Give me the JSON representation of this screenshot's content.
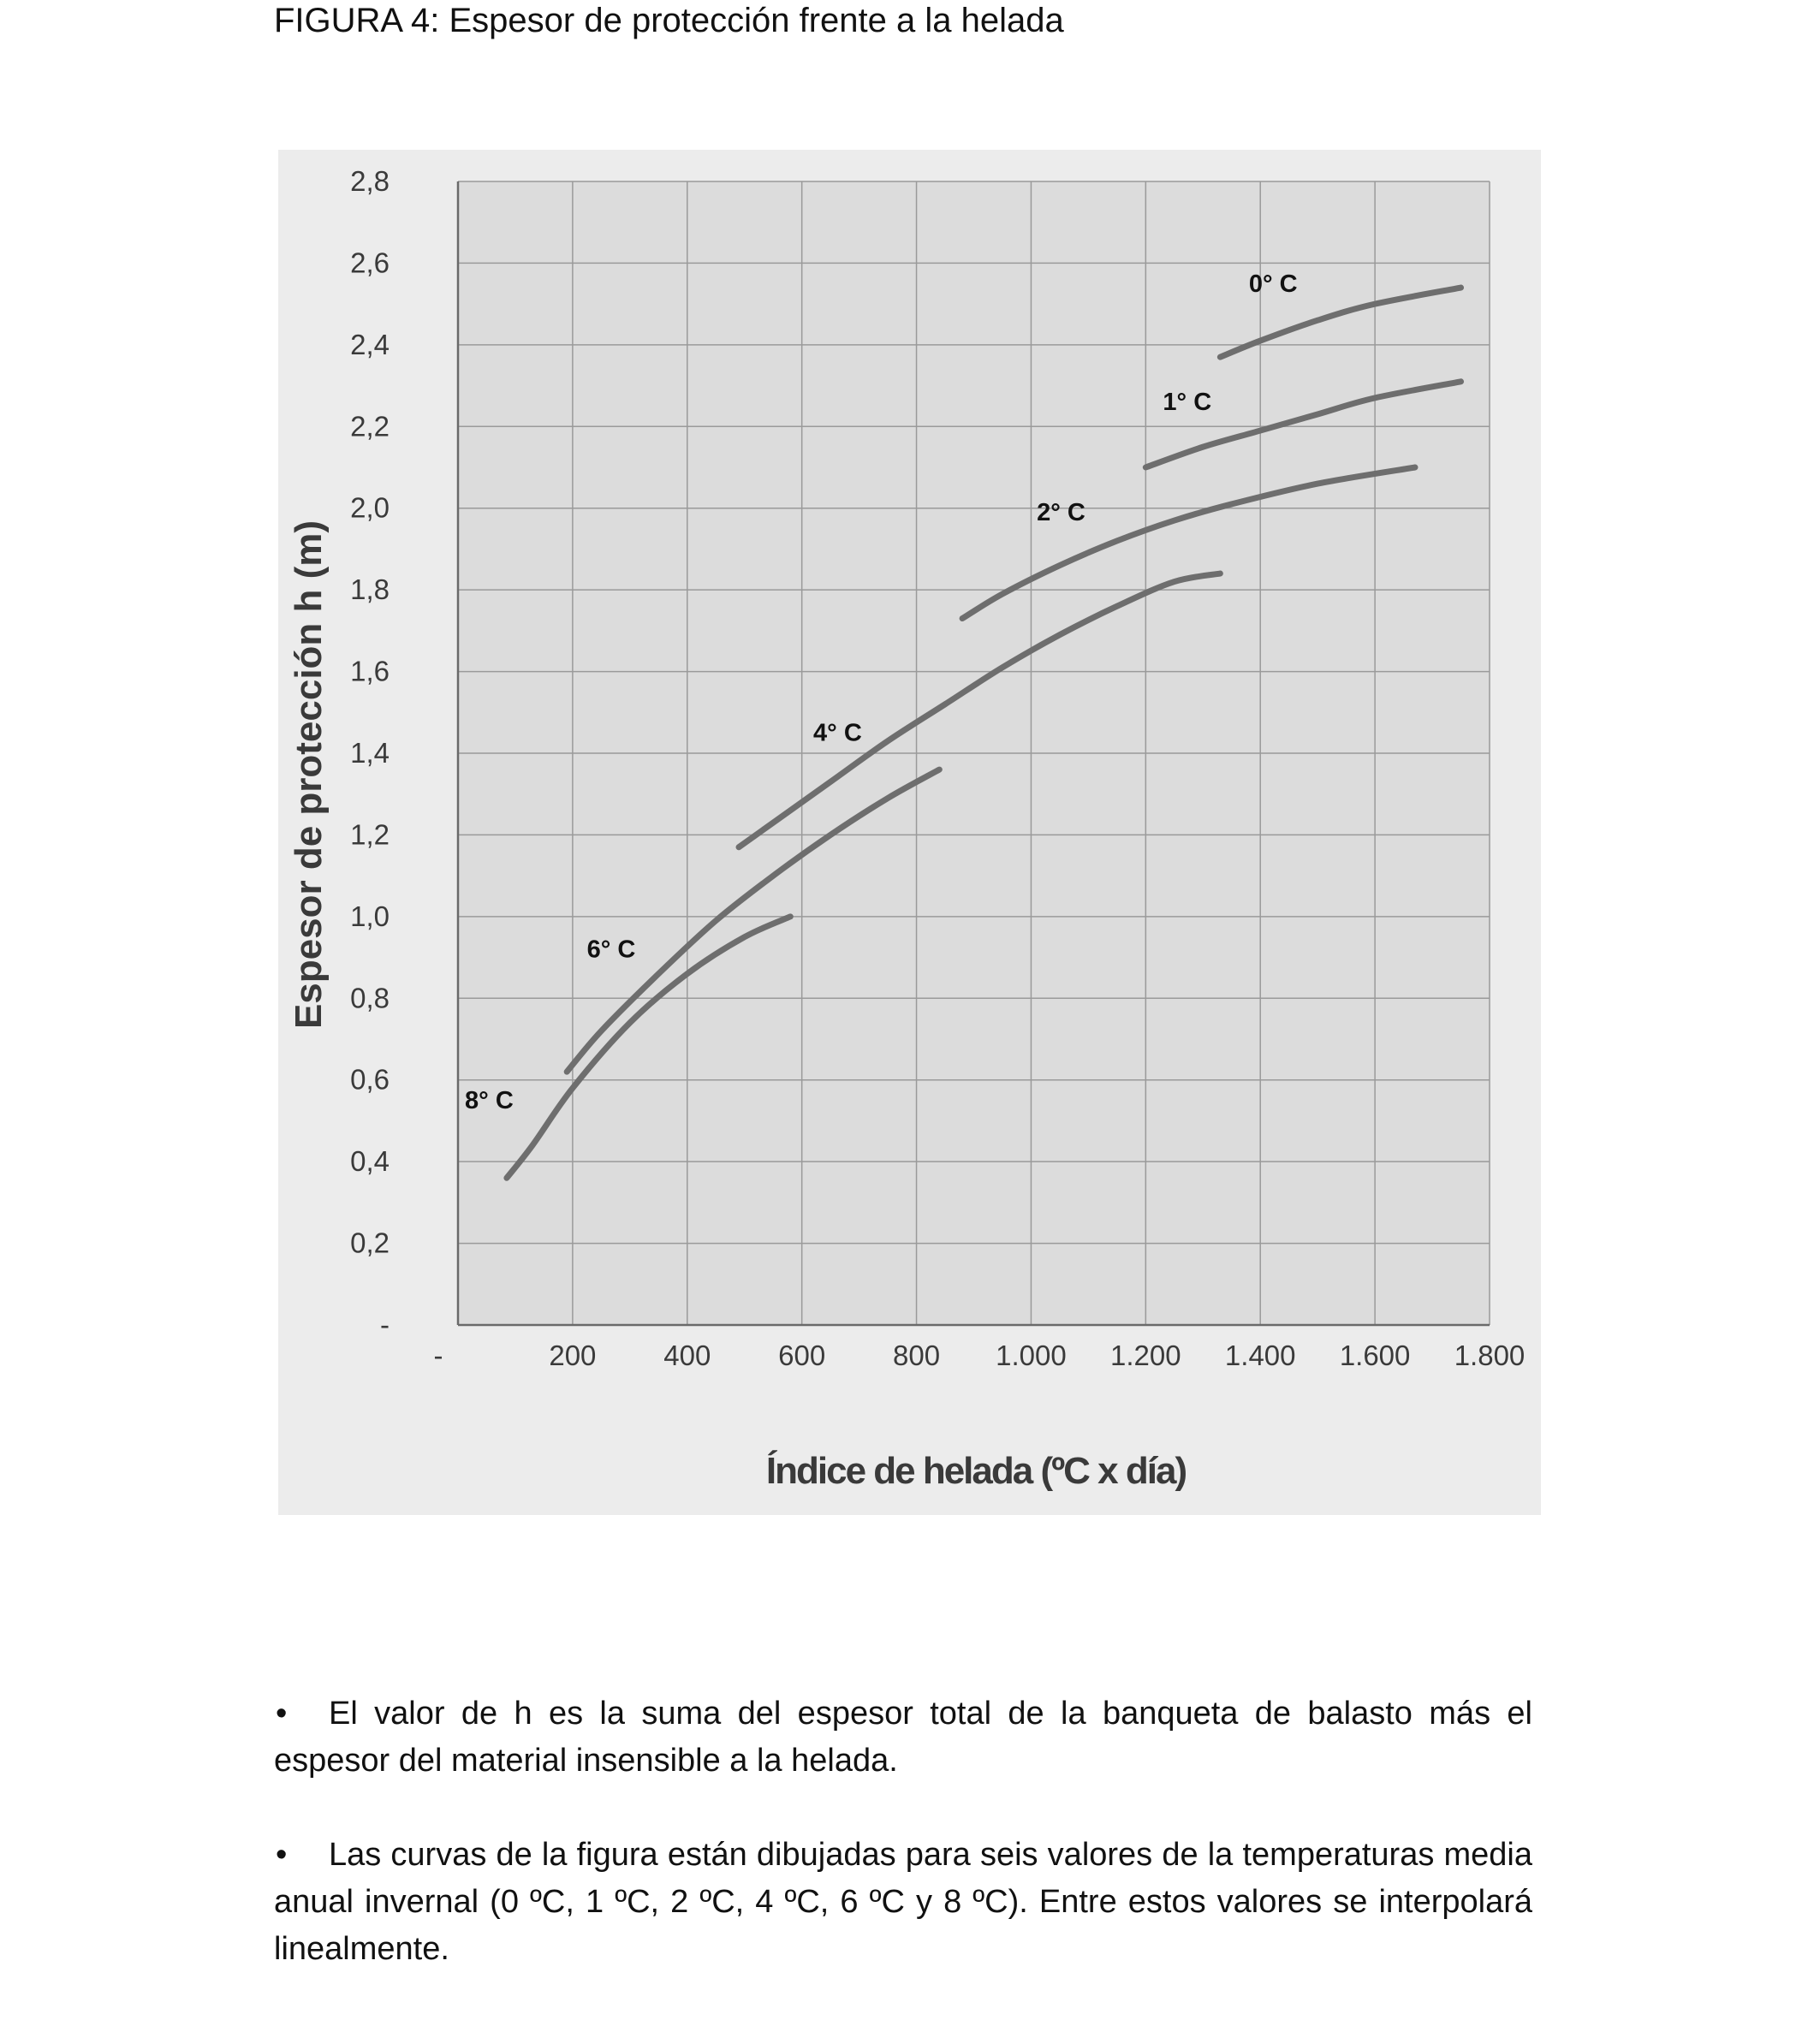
{
  "figure_title": "FIGURA 4: Espesor de protección frente a la helada",
  "chart_data": {
    "type": "line",
    "xlabel": "Índice de helada (ºC x día)",
    "ylabel": "Espesor de protección  h (m)",
    "xlim": [
      0,
      1800
    ],
    "ylim": [
      0,
      2.8
    ],
    "x_ticks": [
      "-",
      "200",
      "400",
      "600",
      "800",
      "1.000",
      "1.200",
      "1.400",
      "1.600",
      "1.800"
    ],
    "y_ticks": [
      "-",
      "0,2",
      "0,4",
      "0,6",
      "0,8",
      "1,0",
      "1,2",
      "1,4",
      "1,6",
      "1,8",
      "2,0",
      "2,2",
      "2,4",
      "2,6",
      "2,8"
    ],
    "x_tick_values": [
      0,
      200,
      400,
      600,
      800,
      1000,
      1200,
      1400,
      1600,
      1800
    ],
    "y_tick_values": [
      0,
      0.2,
      0.4,
      0.6,
      0.8,
      1.0,
      1.2,
      1.4,
      1.6,
      1.8,
      2.0,
      2.2,
      2.4,
      2.6,
      2.8
    ],
    "grid": true,
    "grid_x_step": 200,
    "grid_y_step": 0.2,
    "colors": {
      "plot_bg": "#dcdcdc",
      "outer_bg": "#ececec",
      "grid": "#9a9a9a",
      "line": "#6e6e6e"
    },
    "series": [
      {
        "name": "0° C",
        "label_at": [
          1380,
          2.53
        ],
        "points": [
          [
            1330,
            2.37
          ],
          [
            1400,
            2.41
          ],
          [
            1500,
            2.46
          ],
          [
            1600,
            2.5
          ],
          [
            1750,
            2.54
          ]
        ]
      },
      {
        "name": "1° C",
        "label_at": [
          1230,
          2.24
        ],
        "points": [
          [
            1200,
            2.1
          ],
          [
            1300,
            2.15
          ],
          [
            1400,
            2.19
          ],
          [
            1500,
            2.23
          ],
          [
            1600,
            2.27
          ],
          [
            1750,
            2.31
          ]
        ]
      },
      {
        "name": "2° C",
        "label_at": [
          1010,
          1.97
        ],
        "points": [
          [
            880,
            1.73
          ],
          [
            950,
            1.79
          ],
          [
            1050,
            1.86
          ],
          [
            1150,
            1.92
          ],
          [
            1250,
            1.97
          ],
          [
            1350,
            2.01
          ],
          [
            1500,
            2.06
          ],
          [
            1670,
            2.1
          ]
        ]
      },
      {
        "name": "4° C",
        "label_at": [
          620,
          1.43
        ],
        "points": [
          [
            490,
            1.17
          ],
          [
            550,
            1.23
          ],
          [
            650,
            1.33
          ],
          [
            750,
            1.43
          ],
          [
            850,
            1.52
          ],
          [
            950,
            1.61
          ],
          [
            1050,
            1.69
          ],
          [
            1150,
            1.76
          ],
          [
            1250,
            1.82
          ],
          [
            1330,
            1.84
          ]
        ]
      },
      {
        "name": "6° C",
        "label_at": [
          225,
          0.9
        ],
        "points": [
          [
            190,
            0.62
          ],
          [
            250,
            0.72
          ],
          [
            350,
            0.86
          ],
          [
            450,
            0.99
          ],
          [
            550,
            1.1
          ],
          [
            650,
            1.2
          ],
          [
            750,
            1.29
          ],
          [
            840,
            1.36
          ]
        ]
      },
      {
        "name": "8° C",
        "label_at": [
          12,
          0.53
        ],
        "points": [
          [
            85,
            0.36
          ],
          [
            130,
            0.44
          ],
          [
            200,
            0.58
          ],
          [
            300,
            0.74
          ],
          [
            400,
            0.86
          ],
          [
            500,
            0.95
          ],
          [
            580,
            1.0
          ]
        ]
      }
    ]
  },
  "notes": [
    "El valor de h es la suma del espesor total de la banqueta de balasto más el espesor del material insensible a la helada.",
    "Las curvas de la figura están dibujadas para seis valores de la temperaturas media anual invernal (0 ºC, 1 ºC, 2 ºC, 4 ºC, 6 ºC y 8 ºC). Entre estos valores se interpolará linealmente."
  ],
  "bullet_glyph": "•"
}
